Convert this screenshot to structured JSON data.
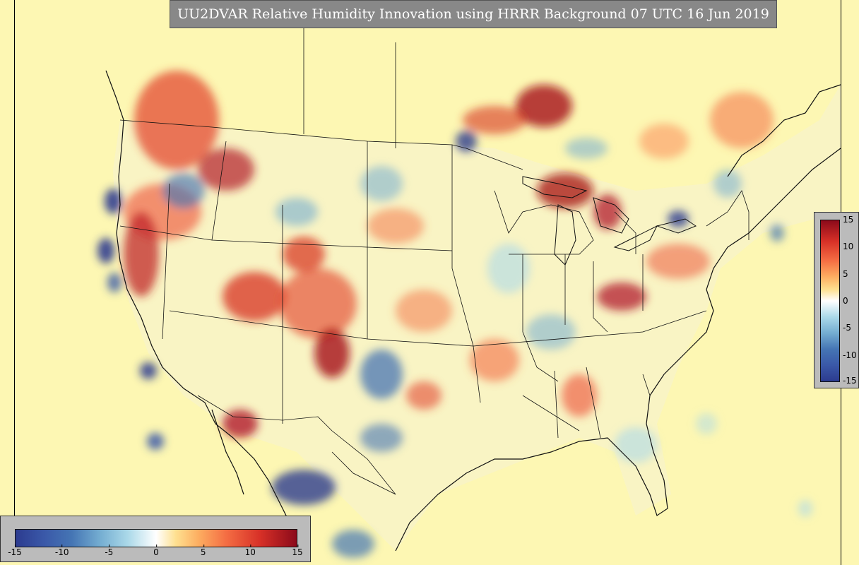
{
  "title": "UU2DVAR Relative Humidity Innovation using HRRR Background 07 UTC 16 Jun 2019",
  "colorbar": {
    "horizontal_ticks": [
      "-15",
      "-10",
      "-5",
      "0",
      "5",
      "10",
      "15"
    ],
    "vertical_ticks": [
      "15",
      "10",
      "5",
      "0",
      "-5",
      "-10",
      "-15"
    ],
    "range": [
      -15,
      15
    ],
    "colors": {
      "low": "#2c3b8f",
      "mid_low": "#74add1",
      "zero": "#ffffff",
      "mid_high": "#f46d43",
      "high": "#8b0a1a",
      "background": "#fdf7b3"
    }
  }
}
